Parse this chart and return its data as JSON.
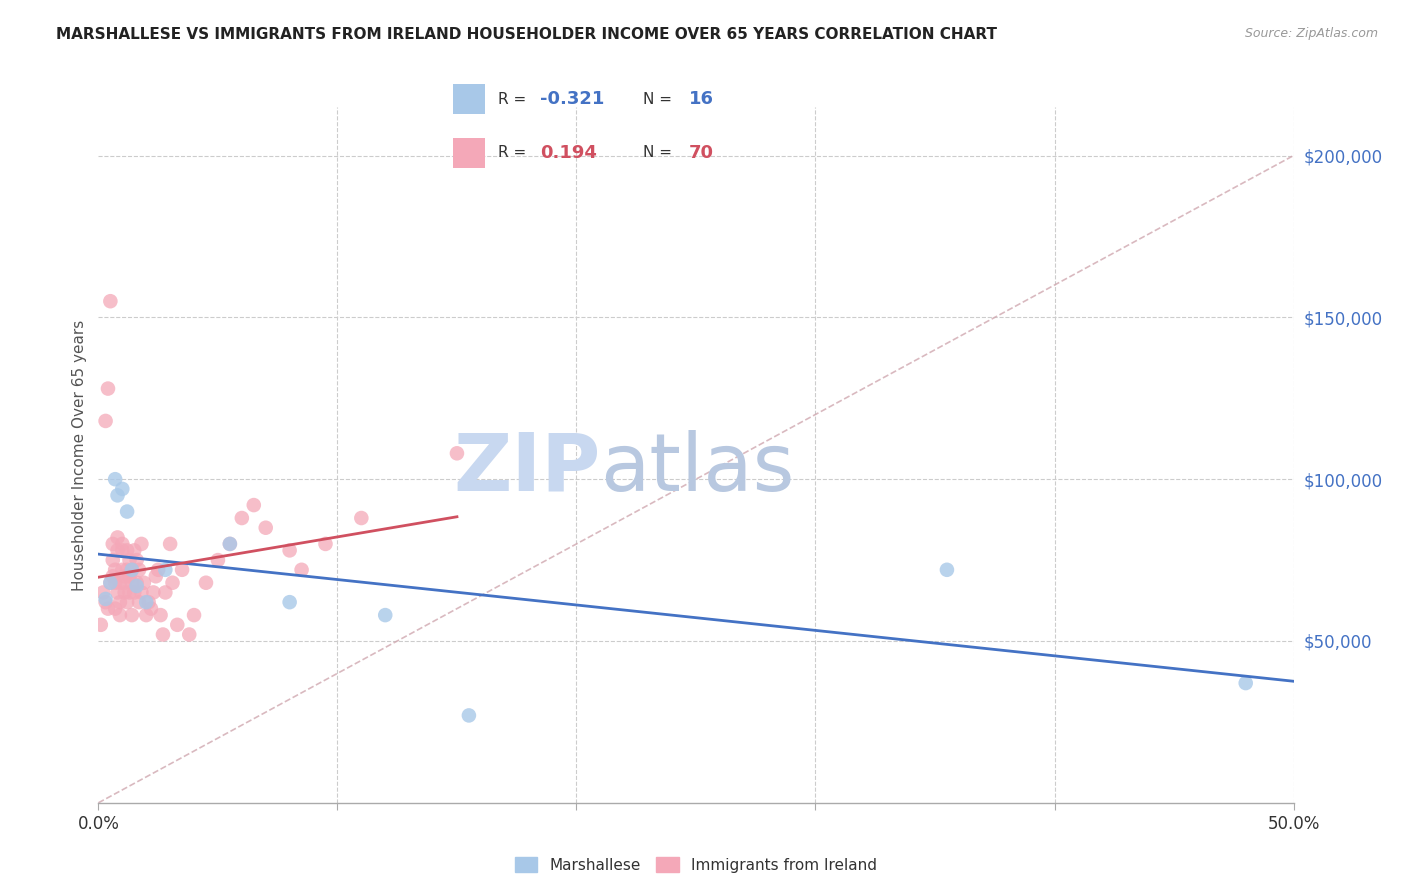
{
  "title": "MARSHALLESE VS IMMIGRANTS FROM IRELAND HOUSEHOLDER INCOME OVER 65 YEARS CORRELATION CHART",
  "source": "Source: ZipAtlas.com",
  "ylabel": "Householder Income Over 65 years",
  "xlim": [
    0,
    0.5
  ],
  "ylim": [
    0,
    215000
  ],
  "legend1_label": "Marshallese",
  "legend2_label": "Immigrants from Ireland",
  "marshallese_color": "#a8c8e8",
  "ireland_color": "#f4a8b8",
  "marshallese_line_color": "#4472c4",
  "ireland_line_color": "#d05060",
  "diag_line_color": "#d0a8b0",
  "R_marshallese": "-0.321",
  "N_marshallese": "16",
  "R_ireland": "0.194",
  "N_ireland": "70",
  "marshallese_x": [
    0.003,
    0.005,
    0.007,
    0.008,
    0.01,
    0.012,
    0.014,
    0.016,
    0.02,
    0.028,
    0.055,
    0.08,
    0.12,
    0.155,
    0.355,
    0.48
  ],
  "marshallese_y": [
    63000,
    68000,
    100000,
    95000,
    97000,
    90000,
    72000,
    67000,
    62000,
    72000,
    80000,
    62000,
    58000,
    27000,
    72000,
    37000
  ],
  "ireland_x": [
    0.001,
    0.002,
    0.003,
    0.003,
    0.004,
    0.004,
    0.005,
    0.005,
    0.006,
    0.006,
    0.006,
    0.007,
    0.007,
    0.007,
    0.008,
    0.008,
    0.008,
    0.009,
    0.009,
    0.009,
    0.01,
    0.01,
    0.01,
    0.011,
    0.011,
    0.011,
    0.012,
    0.012,
    0.012,
    0.013,
    0.013,
    0.013,
    0.014,
    0.014,
    0.014,
    0.015,
    0.015,
    0.016,
    0.016,
    0.017,
    0.017,
    0.018,
    0.018,
    0.019,
    0.02,
    0.021,
    0.022,
    0.023,
    0.024,
    0.025,
    0.026,
    0.027,
    0.028,
    0.03,
    0.031,
    0.033,
    0.035,
    0.038,
    0.04,
    0.045,
    0.05,
    0.055,
    0.06,
    0.065,
    0.07,
    0.08,
    0.085,
    0.095,
    0.11,
    0.15
  ],
  "ireland_y": [
    55000,
    65000,
    62000,
    118000,
    60000,
    128000,
    155000,
    68000,
    70000,
    75000,
    80000,
    68000,
    60000,
    72000,
    65000,
    78000,
    82000,
    68000,
    62000,
    58000,
    72000,
    78000,
    80000,
    70000,
    65000,
    68000,
    78000,
    72000,
    62000,
    65000,
    70000,
    75000,
    68000,
    72000,
    58000,
    78000,
    65000,
    68000,
    75000,
    62000,
    72000,
    65000,
    80000,
    68000,
    58000,
    62000,
    60000,
    65000,
    70000,
    72000,
    58000,
    52000,
    65000,
    80000,
    68000,
    55000,
    72000,
    52000,
    58000,
    68000,
    75000,
    80000,
    88000,
    92000,
    85000,
    78000,
    72000,
    80000,
    88000,
    108000
  ],
  "background_color": "#ffffff",
  "grid_color": "#cccccc",
  "title_color": "#222222",
  "axis_label_color": "#555555",
  "tick_label_color": "#4472c4",
  "watermark_zip": "ZIP",
  "watermark_atlas": "atlas",
  "watermark_color": "#c8d8f0"
}
